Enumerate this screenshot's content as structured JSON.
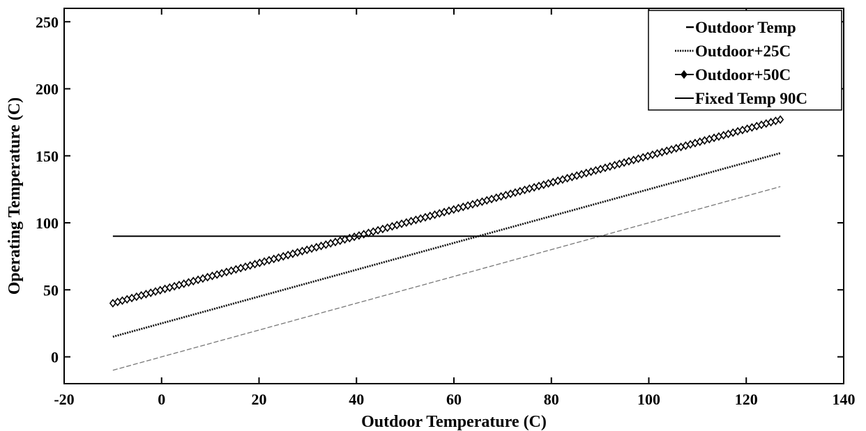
{
  "chart_data": {
    "type": "line",
    "title": "",
    "xlabel": "Outdoor Temperature (C)",
    "ylabel": "Operating Temperature (C)",
    "xlim": [
      -20,
      140
    ],
    "ylim": [
      -20,
      260
    ],
    "x_ticks": [
      -20,
      0,
      20,
      40,
      60,
      80,
      100,
      120,
      140
    ],
    "y_ticks": [
      0,
      50,
      100,
      150,
      200,
      250
    ],
    "grid": false,
    "legend_position": "top-right",
    "series": [
      {
        "name": "Outdoor Temp",
        "x": [
          -10,
          127
        ],
        "y": [
          -10,
          127
        ],
        "style": "dashed-thin",
        "color": "#777777"
      },
      {
        "name": "Outdoor+25C",
        "x": [
          -10,
          127
        ],
        "y": [
          15,
          152
        ],
        "style": "dotted",
        "color": "#111111"
      },
      {
        "name": "Outdoor+50C",
        "x": [
          -10,
          127
        ],
        "y": [
          40,
          177
        ],
        "style": "diamond-markers",
        "color": "#000000"
      },
      {
        "name": "Fixed Temp 90C",
        "x": [
          -10,
          127
        ],
        "y": [
          90,
          90
        ],
        "style": "solid",
        "color": "#000000"
      }
    ]
  }
}
